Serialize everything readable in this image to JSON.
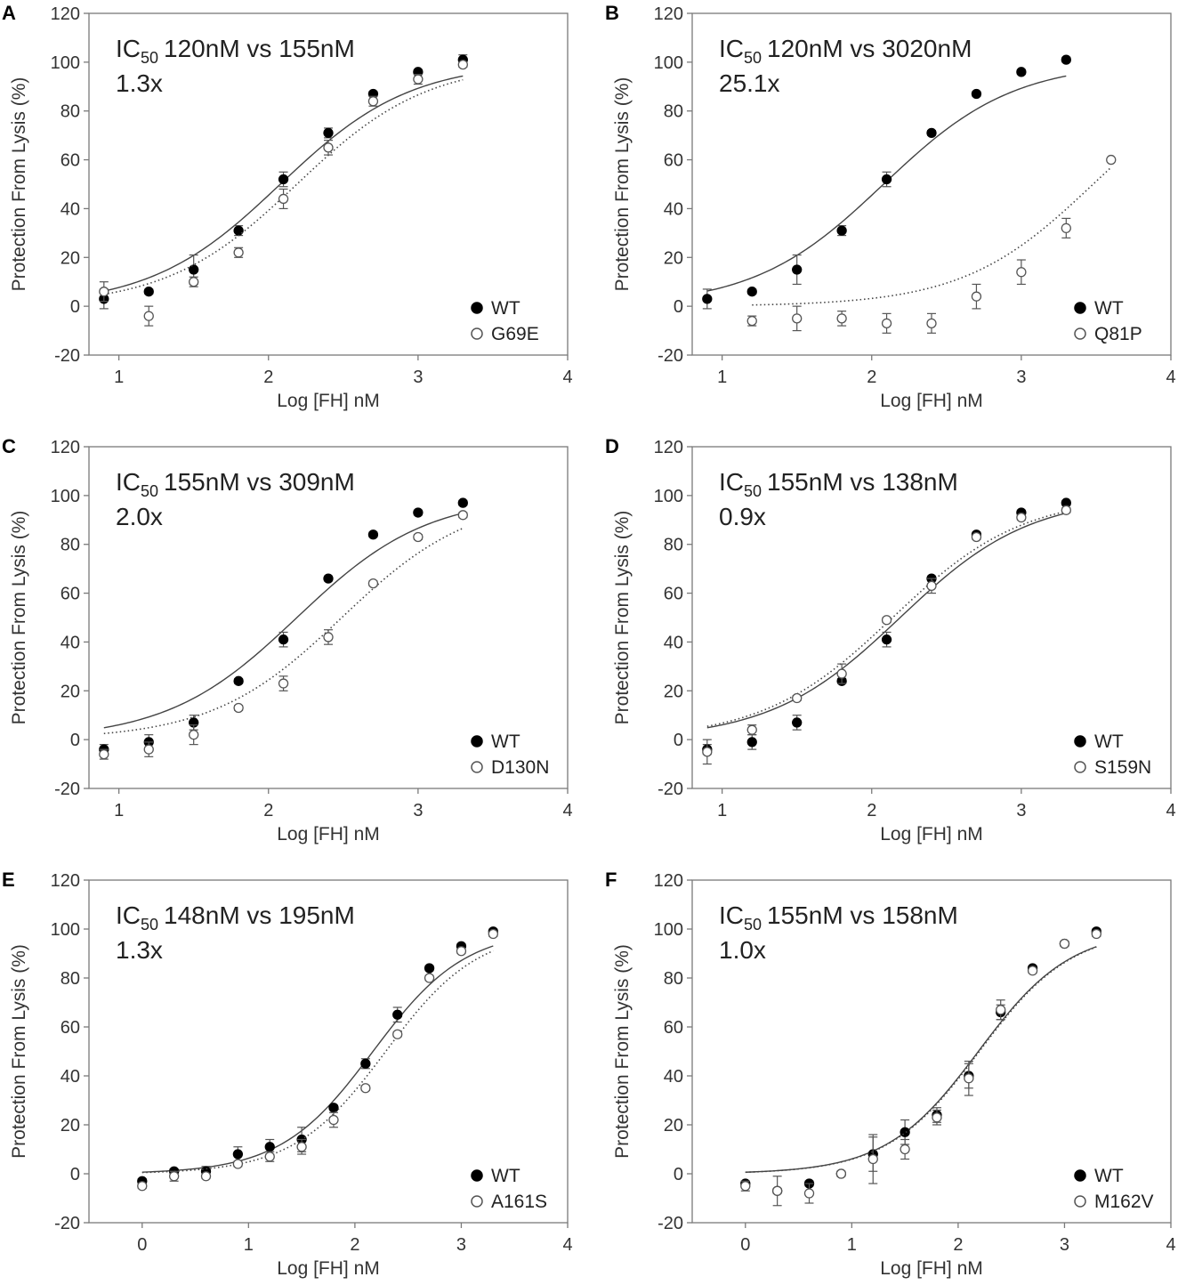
{
  "figure": {
    "colors": {
      "axis": "#7a7a7a",
      "wt_fill": "#000000",
      "mut_fill": "#ffffff",
      "mut_stroke": "#555555",
      "curve": "#444444"
    }
  },
  "chart_data": [
    {
      "type": "scatter",
      "panel": "A",
      "ic_prefix": "IC",
      "ic_sub": "50",
      "ic_values": "120nM vs 155nM",
      "fold": "1.3x",
      "xlabel": "Log [FH] nM",
      "ylabel": "Protection From Lysis (%)",
      "xlim": [
        0.8,
        4
      ],
      "ylim": [
        -20,
        120
      ],
      "xticks": [
        1,
        2,
        3,
        4
      ],
      "xtick_labels": [
        "1",
        "2",
        "3",
        "4"
      ],
      "yticks": [
        -20,
        0,
        20,
        40,
        60,
        80,
        100,
        120
      ],
      "ytick_labels": [
        "-20",
        "0",
        "20",
        "40",
        "60",
        "80",
        "100",
        "120"
      ],
      "legend": [
        "WT",
        "G69E"
      ],
      "series": [
        {
          "name": "WT",
          "marker": "filled",
          "line": "solid",
          "x": [
            0.9,
            1.2,
            1.5,
            1.8,
            2.1,
            2.4,
            2.7,
            3.0,
            3.3
          ],
          "y": [
            3,
            6,
            15,
            31,
            52,
            71,
            87,
            96,
            101
          ],
          "err": [
            4,
            1,
            6,
            2,
            3,
            2,
            1,
            1,
            2
          ],
          "logIC50": 2.079,
          "fit_range": [
            0.9,
            3.3
          ]
        },
        {
          "name": "G69E",
          "marker": "open",
          "line": "dotted",
          "x": [
            0.9,
            1.2,
            1.5,
            1.8,
            2.1,
            2.4,
            2.7,
            3.0,
            3.3
          ],
          "y": [
            6,
            -4,
            10,
            22,
            44,
            65,
            84,
            93,
            99
          ],
          "err": [
            4,
            4,
            2,
            2,
            4,
            3,
            2,
            2,
            1
          ],
          "logIC50": 2.19,
          "fit_range": [
            0.9,
            3.3
          ]
        }
      ]
    },
    {
      "type": "scatter",
      "panel": "B",
      "ic_prefix": "IC",
      "ic_sub": "50",
      "ic_values": "120nM vs 3020nM",
      "fold": "25.1x",
      "xlabel": "Log [FH] nM",
      "ylabel": "Protection From Lysis (%)",
      "xlim": [
        0.8,
        4
      ],
      "ylim": [
        -20,
        120
      ],
      "xticks": [
        1,
        2,
        3,
        4
      ],
      "xtick_labels": [
        "1",
        "2",
        "3",
        "4"
      ],
      "yticks": [
        -20,
        0,
        20,
        40,
        60,
        80,
        100,
        120
      ],
      "ytick_labels": [
        "-20",
        "0",
        "20",
        "40",
        "60",
        "80",
        "100",
        "120"
      ],
      "legend": [
        "WT",
        "Q81P"
      ],
      "series": [
        {
          "name": "WT",
          "marker": "filled",
          "line": "solid",
          "x": [
            0.9,
            1.2,
            1.5,
            1.8,
            2.1,
            2.4,
            2.7,
            3.0,
            3.3
          ],
          "y": [
            3,
            6,
            15,
            31,
            52,
            71,
            87,
            96,
            101
          ],
          "err": [
            4,
            1,
            6,
            2,
            3,
            1,
            1,
            1,
            1
          ],
          "logIC50": 2.079,
          "fit_range": [
            0.9,
            3.3
          ]
        },
        {
          "name": "Q81P",
          "marker": "open",
          "line": "dotted",
          "x": [
            1.2,
            1.5,
            1.8,
            2.1,
            2.4,
            2.7,
            3.0,
            3.3,
            3.6
          ],
          "y": [
            -6,
            -5,
            -5,
            -7,
            -7,
            4,
            14,
            32,
            60
          ],
          "err": [
            2,
            5,
            3,
            4,
            4,
            5,
            5,
            4,
            0
          ],
          "logIC50": 3.48,
          "fit_range": [
            1.2,
            3.6
          ]
        }
      ]
    },
    {
      "type": "scatter",
      "panel": "C",
      "ic_prefix": "IC",
      "ic_sub": "50",
      "ic_values": "155nM vs 309nM",
      "fold": "2.0x",
      "xlabel": "Log [FH] nM",
      "ylabel": "Protection From Lysis (%)",
      "xlim": [
        0.8,
        4
      ],
      "ylim": [
        -20,
        120
      ],
      "xticks": [
        1,
        2,
        3,
        4
      ],
      "xtick_labels": [
        "1",
        "2",
        "3",
        "4"
      ],
      "yticks": [
        -20,
        0,
        20,
        40,
        60,
        80,
        100,
        120
      ],
      "ytick_labels": [
        "-20",
        "0",
        "20",
        "40",
        "60",
        "80",
        "100",
        "120"
      ],
      "legend": [
        "WT",
        "D130N"
      ],
      "series": [
        {
          "name": "WT",
          "marker": "filled",
          "line": "solid",
          "x": [
            0.9,
            1.2,
            1.5,
            1.8,
            2.1,
            2.4,
            2.7,
            3.0,
            3.3
          ],
          "y": [
            -4,
            -1,
            7,
            24,
            41,
            66,
            84,
            93,
            97
          ],
          "err": [
            2,
            3,
            3,
            1,
            3,
            1,
            1,
            1,
            1
          ],
          "logIC50": 2.19,
          "fit_range": [
            0.9,
            3.3
          ]
        },
        {
          "name": "D130N",
          "marker": "open",
          "line": "dotted",
          "x": [
            0.9,
            1.2,
            1.5,
            1.8,
            2.1,
            2.4,
            2.7,
            3.0,
            3.3
          ],
          "y": [
            -6,
            -4,
            2,
            13,
            23,
            42,
            64,
            83,
            92
          ],
          "err": [
            2,
            3,
            4,
            1,
            3,
            3,
            1,
            1,
            1
          ],
          "logIC50": 2.49,
          "fit_range": [
            0.9,
            3.3
          ]
        }
      ]
    },
    {
      "type": "scatter",
      "panel": "D",
      "ic_prefix": "IC",
      "ic_sub": "50",
      "ic_values": "155nM vs 138nM",
      "fold": "0.9x",
      "xlabel": "Log [FH] nM",
      "ylabel": "Protection From Lysis (%)",
      "xlim": [
        0.8,
        4
      ],
      "ylim": [
        -20,
        120
      ],
      "xticks": [
        1,
        2,
        3,
        4
      ],
      "xtick_labels": [
        "1",
        "2",
        "3",
        "4"
      ],
      "yticks": [
        -20,
        0,
        20,
        40,
        60,
        80,
        100,
        120
      ],
      "ytick_labels": [
        "-20",
        "0",
        "20",
        "40",
        "60",
        "80",
        "100",
        "120"
      ],
      "legend": [
        "WT",
        "S159N"
      ],
      "series": [
        {
          "name": "WT",
          "marker": "filled",
          "line": "solid",
          "x": [
            0.9,
            1.2,
            1.5,
            1.8,
            2.1,
            2.4,
            2.7,
            3.0,
            3.3
          ],
          "y": [
            -4,
            -1,
            7,
            24,
            41,
            66,
            84,
            93,
            97
          ],
          "err": [
            2,
            3,
            3,
            1,
            3,
            1,
            1,
            1,
            1
          ],
          "logIC50": 2.19,
          "fit_range": [
            0.9,
            3.3
          ]
        },
        {
          "name": "S159N",
          "marker": "open",
          "line": "dotted",
          "x": [
            0.9,
            1.2,
            1.5,
            1.8,
            2.1,
            2.4,
            2.7,
            3.0,
            3.3
          ],
          "y": [
            -5,
            4,
            17,
            27,
            49,
            63,
            83,
            91,
            94
          ],
          "err": [
            5,
            2,
            1,
            4,
            1,
            3,
            1,
            1,
            1
          ],
          "logIC50": 2.14,
          "fit_range": [
            0.9,
            3.3
          ]
        }
      ]
    },
    {
      "type": "scatter",
      "panel": "E",
      "ic_prefix": "IC",
      "ic_sub": "50",
      "ic_values": "148nM vs 195nM",
      "fold": "1.3x",
      "xlabel": "Log [FH] nM",
      "ylabel": "Protection From Lysis (%)",
      "xlim": [
        -0.5,
        4
      ],
      "ylim": [
        -20,
        120
      ],
      "xticks": [
        0,
        1,
        2,
        3,
        4
      ],
      "xtick_labels": [
        "0",
        "1",
        "2",
        "3",
        "4"
      ],
      "yticks": [
        -20,
        0,
        20,
        40,
        60,
        80,
        100,
        120
      ],
      "ytick_labels": [
        "-20",
        "0",
        "20",
        "40",
        "60",
        "80",
        "100",
        "120"
      ],
      "legend": [
        "WT",
        "A161S"
      ],
      "series": [
        {
          "name": "WT",
          "marker": "filled",
          "line": "solid",
          "x": [
            0,
            0.3,
            0.6,
            0.9,
            1.2,
            1.5,
            1.8,
            2.1,
            2.4,
            2.7,
            3.0,
            3.3
          ],
          "y": [
            -3,
            1,
            1,
            8,
            11,
            14,
            27,
            45,
            65,
            84,
            93,
            99
          ],
          "err": [
            1,
            1,
            2,
            3,
            3,
            5,
            1,
            2,
            3,
            1,
            1,
            1
          ],
          "logIC50": 2.17,
          "fit_range": [
            0,
            3.3
          ]
        },
        {
          "name": "A161S",
          "marker": "open",
          "line": "dotted",
          "x": [
            0,
            0.3,
            0.6,
            0.9,
            1.2,
            1.5,
            1.8,
            2.1,
            2.4,
            2.7,
            3.0,
            3.3
          ],
          "y": [
            -5,
            -1,
            -1,
            4,
            7,
            11,
            22,
            35,
            57,
            80,
            91,
            98
          ],
          "err": [
            1,
            2,
            1,
            1,
            2,
            3,
            3,
            1,
            1,
            1,
            1,
            1
          ],
          "logIC50": 2.29,
          "fit_range": [
            0,
            3.3
          ]
        }
      ]
    },
    {
      "type": "scatter",
      "panel": "F",
      "ic_prefix": "IC",
      "ic_sub": "50",
      "ic_values": "155nM vs 158nM",
      "fold": "1.0x",
      "xlabel": "Log [FH] nM",
      "ylabel": "Protection From Lysis (%)",
      "xlim": [
        -0.5,
        4
      ],
      "ylim": [
        -20,
        120
      ],
      "xticks": [
        0,
        1,
        2,
        3,
        4
      ],
      "xtick_labels": [
        "0",
        "1",
        "2",
        "3",
        "4"
      ],
      "yticks": [
        -20,
        0,
        20,
        40,
        60,
        80,
        100,
        120
      ],
      "ytick_labels": [
        "-20",
        "0",
        "20",
        "40",
        "60",
        "80",
        "100",
        "120"
      ],
      "legend": [
        "WT",
        "M162V"
      ],
      "series": [
        {
          "name": "WT",
          "marker": "filled",
          "line": "solid",
          "x": [
            0,
            0.3,
            0.6,
            0.9,
            1.2,
            1.5,
            1.8,
            2.1,
            2.4,
            2.7,
            3.0,
            3.3
          ],
          "y": [
            -4,
            -7,
            -4,
            0,
            8,
            17,
            24,
            40,
            66,
            84,
            94,
            99
          ],
          "err": [
            1,
            1,
            1,
            1,
            7,
            5,
            3,
            5,
            3,
            1,
            1,
            1
          ],
          "logIC50": 2.19,
          "fit_range": [
            0,
            3.3
          ]
        },
        {
          "name": "M162V",
          "marker": "open",
          "line": "dotted",
          "x": [
            0,
            0.3,
            0.6,
            0.9,
            1.2,
            1.5,
            1.8,
            2.1,
            2.4,
            2.7,
            3.0,
            3.3
          ],
          "y": [
            -5,
            -7,
            -8,
            0,
            6,
            10,
            23,
            39,
            67,
            83,
            94,
            98
          ],
          "err": [
            2,
            6,
            4,
            1,
            10,
            4,
            3,
            7,
            4,
            1,
            1,
            1
          ],
          "logIC50": 2.2,
          "fit_range": [
            0,
            3.3
          ]
        }
      ]
    }
  ]
}
